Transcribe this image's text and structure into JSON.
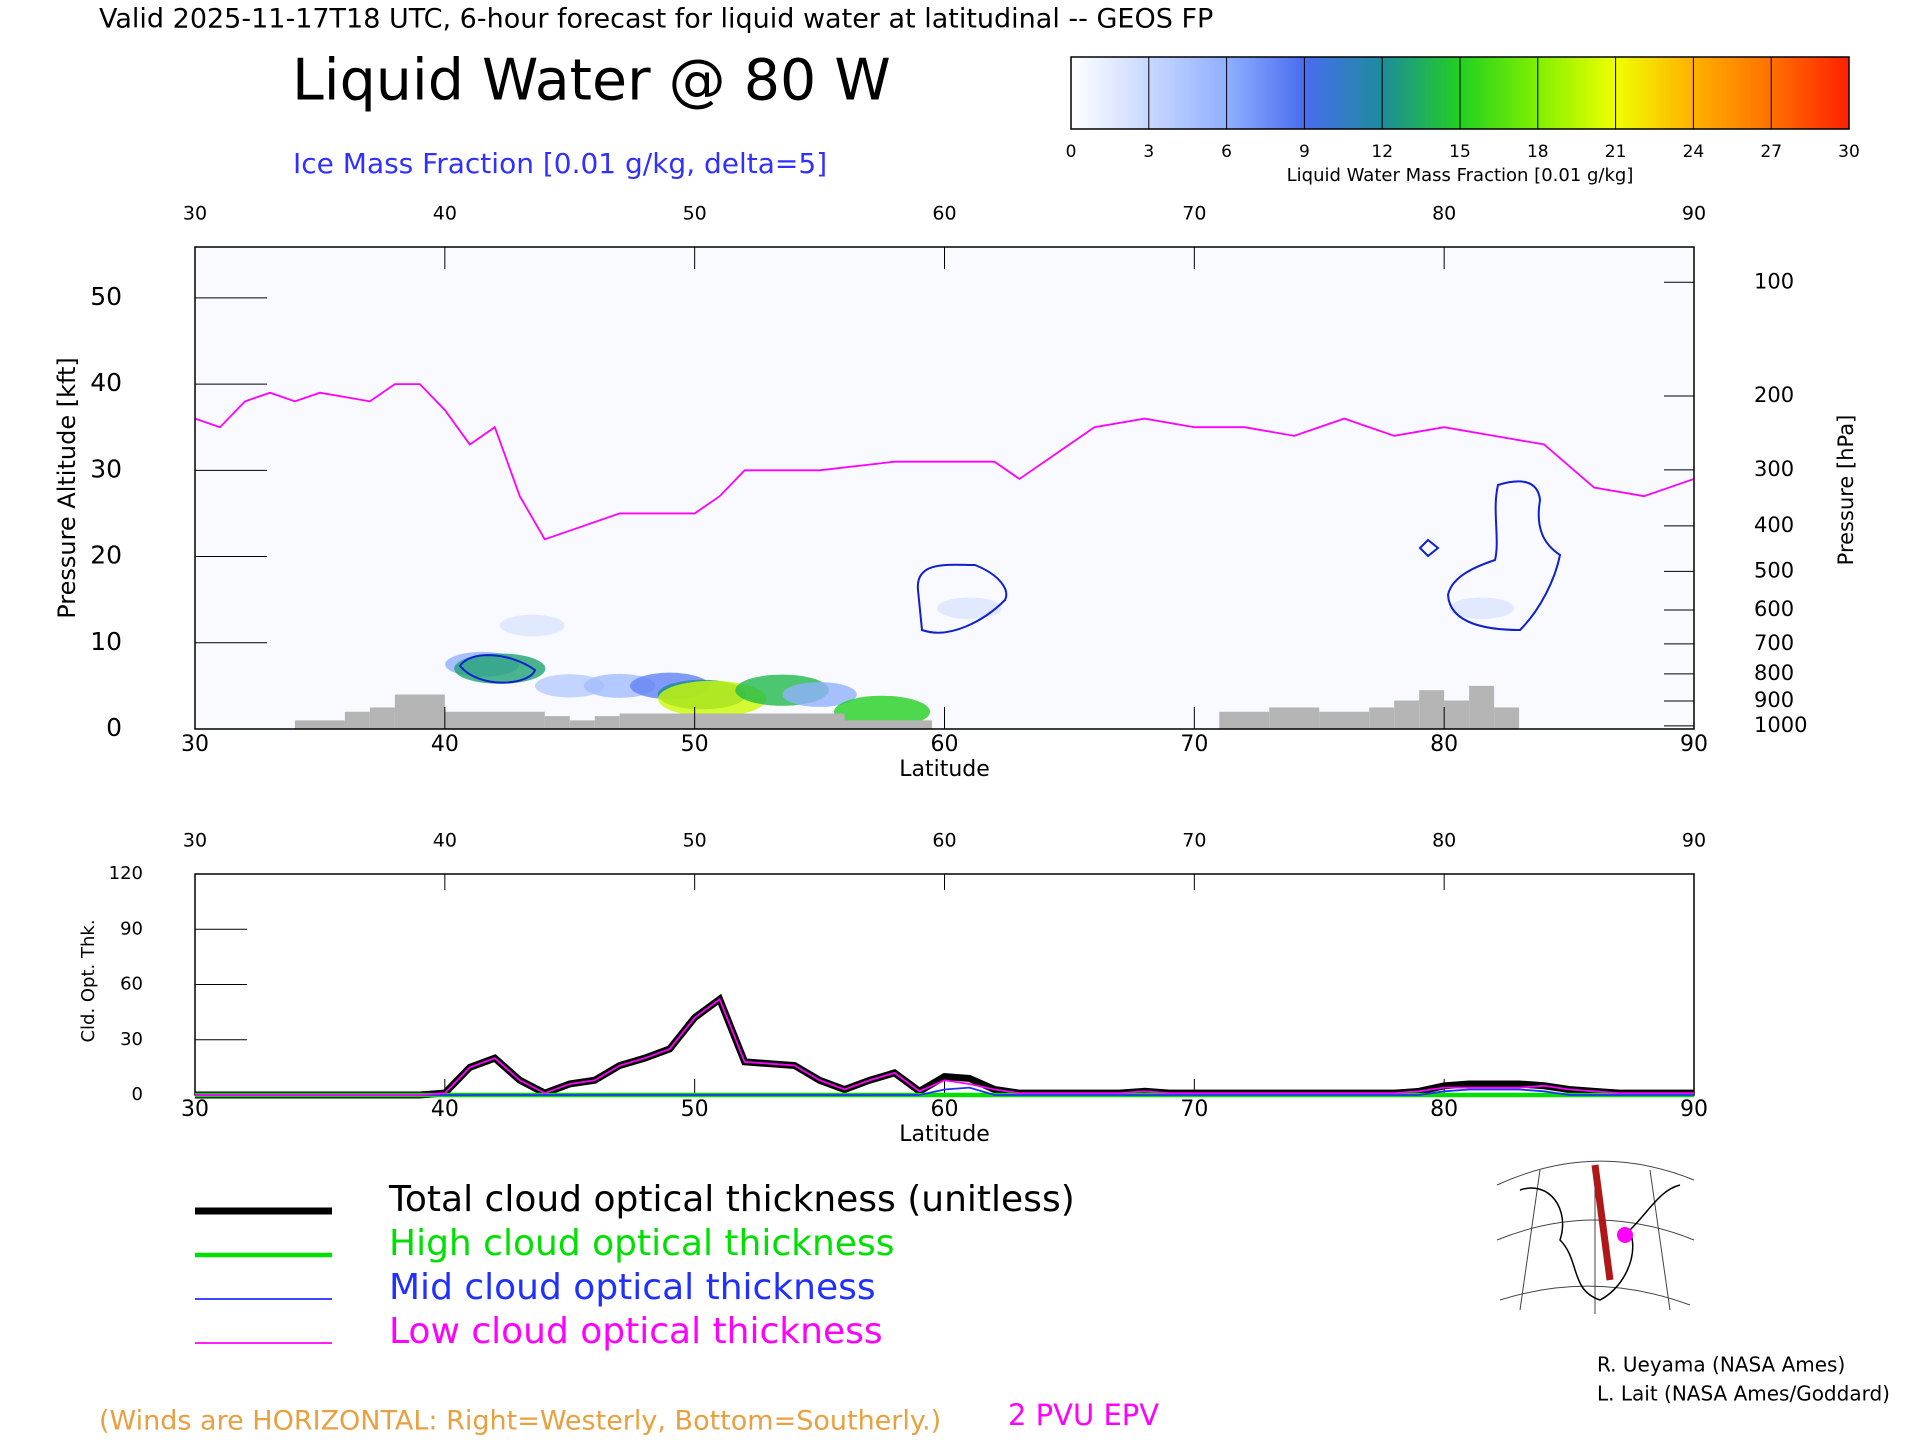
{
  "header": "Valid 2025-11-17T18 UTC, 6-hour forecast for liquid water at latitudinal -- GEOS FP",
  "title": "Liquid Water @ 80 W",
  "subtitle": "Ice Mass Fraction [0.01 g/kg, delta=5]",
  "colorbar": {
    "label": "Liquid Water Mass Fraction [0.01 g/kg]",
    "lim": [
      0,
      30
    ],
    "ticks": [
      0,
      3,
      6,
      9,
      12,
      15,
      18,
      21,
      24,
      27,
      30
    ],
    "colors": [
      "#ffffff",
      "#c8d8ff",
      "#90b0ff",
      "#4a6cf0",
      "#1c8c9c",
      "#22d022",
      "#80f000",
      "#f0ff00",
      "#ffb000",
      "#ff7000",
      "#ff2000"
    ]
  },
  "chart_data": [
    {
      "type": "section",
      "xlabel": "Latitude",
      "ylabel": "Pressure Altitude [kft]",
      "y2label": "Pressure [hPa]",
      "xlim": [
        30,
        90
      ],
      "xticks": [
        30,
        40,
        50,
        60,
        70,
        80,
        90
      ],
      "ylim": [
        0,
        55.9
      ],
      "yticks": [
        0,
        10,
        20,
        30,
        40,
        50
      ],
      "y2scale": "standard-atmosphere",
      "y2ticks": [
        100,
        200,
        300,
        400,
        500,
        600,
        700,
        800,
        900,
        1000
      ],
      "tropopause": {
        "name": "2 PVU EPV",
        "color": "#ff00ff",
        "x": [
          30,
          31,
          32,
          33,
          34,
          35,
          37,
          38,
          39,
          40,
          41,
          42,
          43,
          44,
          45,
          47,
          49,
          50,
          51,
          52,
          55,
          58,
          60,
          62,
          63,
          65,
          66,
          68,
          70,
          72,
          74,
          76,
          78,
          80,
          82,
          84,
          86,
          88,
          90
        ],
        "values": [
          36,
          35,
          38,
          39,
          38,
          39,
          38,
          40,
          40,
          37,
          33,
          35,
          27,
          22,
          23,
          25,
          25,
          25,
          27,
          30,
          30,
          31,
          31,
          31,
          29,
          33,
          35,
          36,
          35,
          35,
          34,
          36,
          34,
          35,
          34,
          33,
          28,
          27,
          29
        ]
      },
      "terrain": {
        "color": "#b4b4b4",
        "bins": [
          34,
          36,
          37,
          38,
          40,
          44,
          45,
          46,
          47,
          56,
          59.5,
          71,
          73,
          75,
          77,
          78,
          79,
          80,
          81,
          82,
          83
        ],
        "values": [
          1,
          2,
          2.5,
          4,
          2,
          1.5,
          1,
          1.5,
          1.8,
          1,
          0,
          2,
          2.5,
          2,
          2.5,
          3.3,
          4.5,
          3.3,
          5,
          2.5
        ]
      },
      "clouds": [
        {
          "lat": 43.5,
          "alt": 12,
          "value": 2
        },
        {
          "lat": 61,
          "alt": 14,
          "value": 2
        },
        {
          "lat": 81.5,
          "alt": 14,
          "value": 2
        },
        {
          "lat": 41.5,
          "alt": 7.5,
          "value": 6
        },
        {
          "lat": 42.2,
          "alt": 7,
          "value": 13
        },
        {
          "lat": 45,
          "alt": 5,
          "value": 4
        },
        {
          "lat": 47,
          "alt": 5,
          "value": 5
        },
        {
          "lat": 49,
          "alt": 5,
          "value": 8
        },
        {
          "lat": 50.3,
          "alt": 4,
          "value": 12
        },
        {
          "lat": 50.7,
          "alt": 3.5,
          "value": 20
        },
        {
          "lat": 53.5,
          "alt": 4.5,
          "value": 14
        },
        {
          "lat": 55,
          "alt": 4,
          "value": 6
        },
        {
          "lat": 57.5,
          "alt": 2,
          "value": 15
        }
      ]
    },
    {
      "type": "line",
      "xlabel": "Latitude",
      "ylabel": "Cld. Opt. Thk.",
      "xlim": [
        30,
        90
      ],
      "xticks": [
        30,
        40,
        50,
        60,
        70,
        80,
        90
      ],
      "ylim": [
        0,
        120
      ],
      "yticks": [
        0,
        30,
        60,
        90,
        120
      ],
      "x": [
        30,
        31,
        32,
        33,
        34,
        35,
        36,
        37,
        38,
        39,
        40,
        41,
        42,
        43,
        44,
        45,
        46,
        47,
        48,
        49,
        50,
        51,
        52,
        53,
        54,
        55,
        56,
        57,
        58,
        59,
        60,
        61,
        62,
        63,
        64,
        65,
        66,
        67,
        68,
        69,
        70,
        71,
        72,
        73,
        74,
        75,
        76,
        77,
        78,
        79,
        80,
        81,
        82,
        83,
        84,
        85,
        86,
        87,
        88,
        89,
        90
      ],
      "series": [
        {
          "name": "Total cloud optical thickness (unitless)",
          "color": "#000000",
          "values": [
            0,
            0,
            0,
            0,
            0,
            0,
            0,
            0,
            0,
            0,
            1,
            15,
            20,
            8,
            1,
            6,
            8,
            16,
            20,
            25,
            42,
            52,
            18,
            17,
            16,
            8,
            3,
            8,
            12,
            2,
            10,
            9,
            3,
            1,
            1,
            1,
            1,
            1,
            2,
            1,
            1,
            1,
            1,
            1,
            1,
            1,
            1,
            1,
            1,
            2,
            5,
            6,
            6,
            6,
            5,
            3,
            2,
            1,
            1,
            1,
            1
          ]
        },
        {
          "name": "High cloud optical thickness",
          "color": "#00e000",
          "values": [
            0,
            0,
            0,
            0,
            0,
            0,
            0,
            0,
            0,
            0,
            0,
            0,
            0,
            0,
            0,
            0,
            0,
            0,
            0,
            0,
            0,
            0,
            0,
            0,
            0,
            0,
            0,
            0,
            0,
            0,
            0,
            0,
            0,
            0,
            0,
            0,
            0,
            0,
            0,
            0,
            0,
            0,
            0,
            0,
            0,
            0,
            0,
            0,
            0,
            0,
            0,
            0,
            0,
            0,
            0,
            0,
            0,
            0,
            0,
            0,
            0
          ]
        },
        {
          "name": "Mid cloud optical thickness",
          "color": "#2030ff",
          "values": [
            0,
            0,
            0,
            0,
            0,
            0,
            0,
            0,
            0,
            0,
            0,
            0,
            0,
            0,
            0,
            0,
            0,
            0,
            0,
            0,
            0,
            0,
            0,
            0,
            0,
            0,
            0,
            0,
            0,
            0,
            3,
            4,
            0,
            0,
            0,
            0,
            0,
            0,
            0,
            0,
            0,
            0,
            0,
            0,
            0,
            0,
            0,
            0,
            0,
            0,
            2,
            3,
            3,
            3,
            2,
            0,
            0,
            0,
            0,
            0,
            0
          ]
        },
        {
          "name": "Low cloud optical thickness",
          "color": "#ff00ff",
          "values": [
            0,
            0,
            0,
            0,
            0,
            0,
            0,
            0,
            0,
            0,
            1,
            15,
            20,
            8,
            1,
            6,
            8,
            16,
            20,
            25,
            42,
            52,
            18,
            17,
            16,
            8,
            3,
            8,
            12,
            2,
            8,
            6,
            3,
            1,
            1,
            1,
            1,
            1,
            2,
            1,
            1,
            1,
            1,
            1,
            1,
            1,
            1,
            1,
            1,
            2,
            4,
            4,
            4,
            4,
            5,
            3,
            2,
            1,
            1,
            1,
            1
          ]
        }
      ]
    }
  ],
  "winds_note": "(Winds are HORIZONTAL: Right=Westerly, Bottom=Southerly.)",
  "credits": [
    "R. Ueyama (NASA Ames)",
    "L. Lait (NASA Ames/Goddard)"
  ]
}
